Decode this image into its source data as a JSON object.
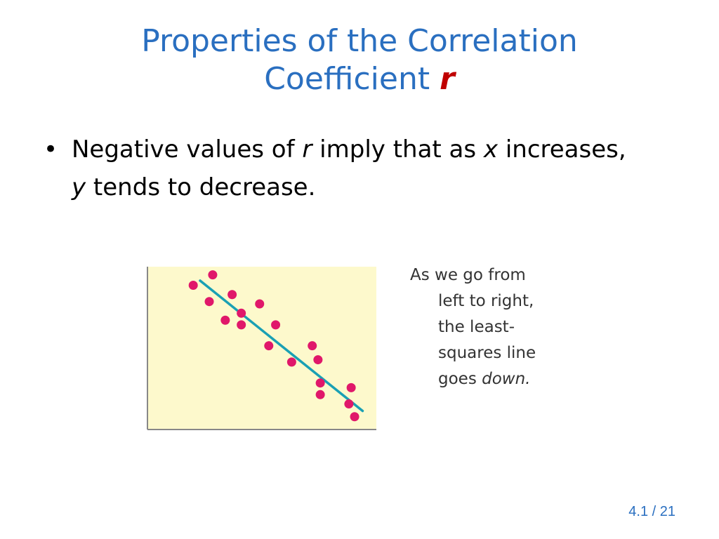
{
  "title": {
    "line1": "Properties of the Correlation",
    "line2": "Coefficient",
    "variable": "r"
  },
  "bullet": {
    "part1": "Negative values of ",
    "var_r": "r",
    "part2": " imply that as ",
    "var_x": "x",
    "part3": " increases,",
    "var_y": "y",
    "part4": " tends to decrease."
  },
  "caption": {
    "line1": "As we go from",
    "line2": "left to right,",
    "line3": "the least-",
    "line4": "squares line",
    "line5_prefix": "goes ",
    "line5_italic": "down."
  },
  "slide_number": "4.1 / 21",
  "colors": {
    "title": "#2a6fc0",
    "variable_r": "#c00000",
    "plot_background": "#fdf9cc",
    "points": "#e0186a",
    "regression_line": "#1aa0b4",
    "axes": "#888888"
  },
  "chart_data": {
    "type": "scatter",
    "title": "",
    "xlabel": "",
    "ylabel": "",
    "xlim": [
      0,
      10
    ],
    "ylim": [
      0,
      7
    ],
    "points": [
      {
        "x": 2.0,
        "y": 6.2
      },
      {
        "x": 2.85,
        "y": 6.65
      },
      {
        "x": 2.7,
        "y": 5.5
      },
      {
        "x": 3.7,
        "y": 5.8
      },
      {
        "x": 3.4,
        "y": 4.7
      },
      {
        "x": 4.1,
        "y": 5.0
      },
      {
        "x": 4.1,
        "y": 4.5
      },
      {
        "x": 4.9,
        "y": 5.4
      },
      {
        "x": 5.6,
        "y": 4.5
      },
      {
        "x": 5.3,
        "y": 3.6
      },
      {
        "x": 6.3,
        "y": 2.9
      },
      {
        "x": 7.2,
        "y": 3.6
      },
      {
        "x": 7.45,
        "y": 3.0
      },
      {
        "x": 7.55,
        "y": 2.0
      },
      {
        "x": 7.55,
        "y": 1.5
      },
      {
        "x": 8.9,
        "y": 1.8
      },
      {
        "x": 8.8,
        "y": 1.1
      },
      {
        "x": 9.05,
        "y": 0.55
      }
    ],
    "regression_line": {
      "x": [
        2.3,
        9.4
      ],
      "y": [
        6.4,
        0.8
      ]
    },
    "grid": false,
    "legend": "none"
  }
}
